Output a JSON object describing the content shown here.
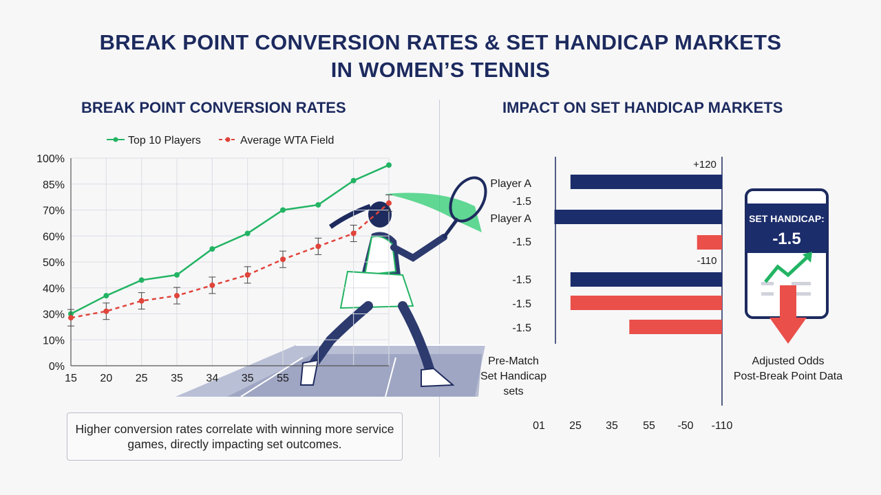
{
  "title_line1": "BREAK POINT CONVERSION RATES & SET HANDICAP MARKETS",
  "title_line2": "IN WOMEN’S TENNIS",
  "left_section_title": "BREAK POINT CONVERSION RATES",
  "right_section_title": "IMPACT ON SET HANDICAP MARKETS",
  "note": "Higher conversion rates correlate with winning more service games, directly impacting set outcomes.",
  "chart_data": [
    {
      "type": "line",
      "title": "BREAK POINT CONVERSION RATES",
      "categories": [
        "15",
        "20",
        "25",
        "35",
        "34",
        "35",
        "55",
        "",
        "",
        ""
      ],
      "y_tick_labels": [
        "100%",
        "85%",
        "70%",
        "60%",
        "50%",
        "40%",
        "30%",
        "10%",
        "0%"
      ],
      "grid": true,
      "legend_position": "top",
      "series": [
        {
          "name": "Top 10 Players",
          "color": "#22b463",
          "style": "solid",
          "values": [
            30,
            37,
            43,
            45,
            55,
            61,
            70,
            73,
            87,
            96
          ]
        },
        {
          "name": "Average WTA Field",
          "color": "#e0443a",
          "style": "dashed",
          "values": [
            27,
            31,
            35,
            37,
            41,
            45,
            51,
            56,
            61,
            74
          ]
        }
      ]
    },
    {
      "type": "bar",
      "orientation": "horizontal",
      "title": "IMPACT ON SET HANDICAP MARKETS",
      "x_tick_labels": [
        "01",
        "25",
        "35",
        "55",
        "-50",
        "-110"
      ],
      "annotations": [
        "+120",
        "-110"
      ],
      "row_labels": [
        "Player A",
        "-1.5",
        "Player A",
        "-1.5",
        "-1.5",
        "-1.5",
        "-1.5"
      ],
      "bars": [
        {
          "color": "#1c2d6b",
          "value": 0.85
        },
        {
          "color": "#1c2d6b",
          "value": 0.94
        },
        {
          "color": "#ea4f4a",
          "value": 0.14
        },
        {
          "color": "#1c2d6b",
          "value": 0.85
        },
        {
          "color": "#ea4f4a",
          "value": 0.85
        },
        {
          "color": "#ea4f4a",
          "value": 0.52
        }
      ],
      "left_caption": [
        "Pre-Match",
        "Set Handicap",
        "sets"
      ],
      "right_caption": [
        "Adjusted Odds",
        "Post-Break Point Data"
      ]
    }
  ],
  "phone": {
    "title": "SET HANDICAP:",
    "value": "-1.5"
  },
  "colors": {
    "navy": "#1c2a5e",
    "green": "#22b463",
    "red": "#e0443a",
    "bar_red": "#ea4f4a"
  }
}
